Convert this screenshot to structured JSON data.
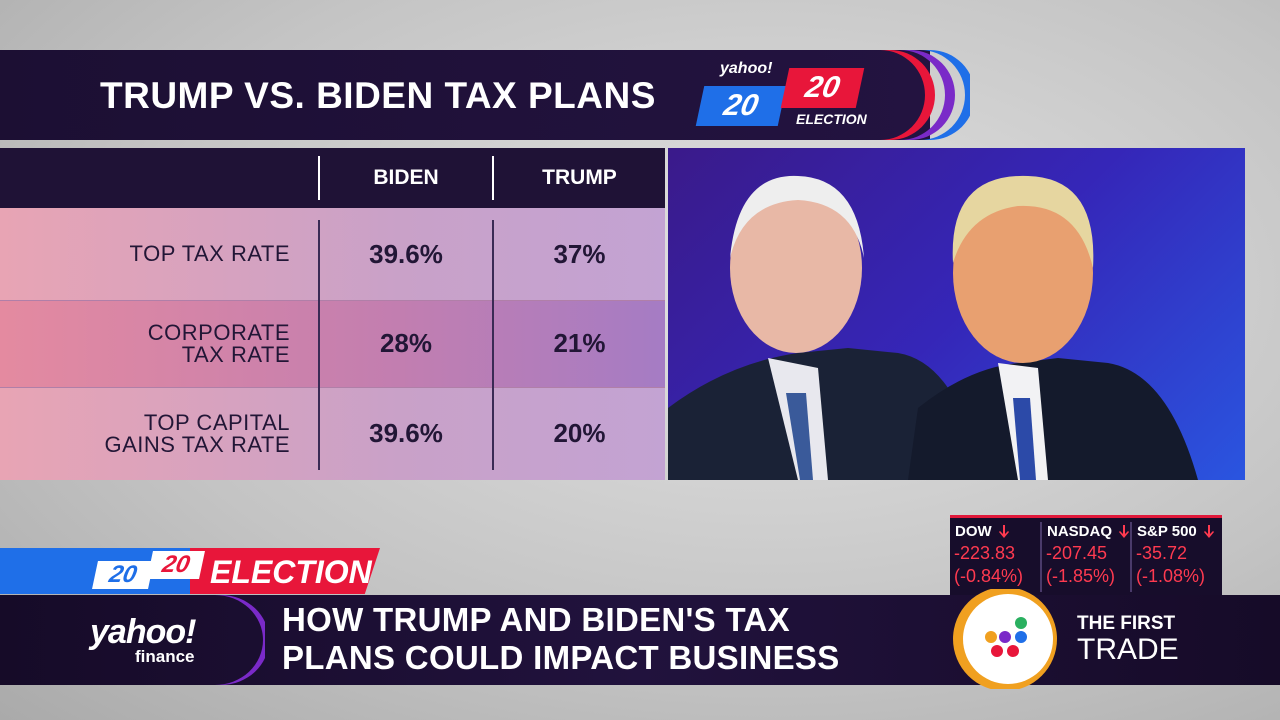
{
  "header": {
    "title": "TRUMP VS. BIDEN TAX PLANS",
    "logo": {
      "brand": "yahoo!",
      "year_left": "20",
      "year_right": "20",
      "label": "ELECTION"
    }
  },
  "table": {
    "columns": [
      "BIDEN",
      "TRUMP"
    ],
    "rows": [
      {
        "label": [
          "TOP TAX RATE"
        ],
        "values": [
          "39.6%",
          "37%"
        ]
      },
      {
        "label": [
          "CORPORATE",
          "TAX RATE"
        ],
        "values": [
          "28%",
          "21%"
        ]
      },
      {
        "label": [
          "TOP CAPITAL",
          "GAINS TAX RATE"
        ],
        "values": [
          "39.6%",
          "20%"
        ]
      }
    ]
  },
  "ticker": [
    {
      "name": "DOW",
      "change": "-223.83",
      "percent": "(-0.84%)"
    },
    {
      "name": "NASDAQ",
      "change": "-207.45",
      "percent": "(-1.85%)"
    },
    {
      "name": "S&P 500",
      "change": "-35.72",
      "percent": "(-1.08%)"
    }
  ],
  "lower_third": {
    "tag": {
      "year_left": "20",
      "year_right": "20",
      "label": "ELECTION"
    },
    "headline": [
      "HOW TRUMP AND BIDEN'S TAX",
      "PLANS COULD IMPACT BUSINESS"
    ],
    "brand": {
      "name": "yahoo!",
      "sub": "finance"
    },
    "show": [
      "THE FIRST",
      "TRADE"
    ]
  }
}
